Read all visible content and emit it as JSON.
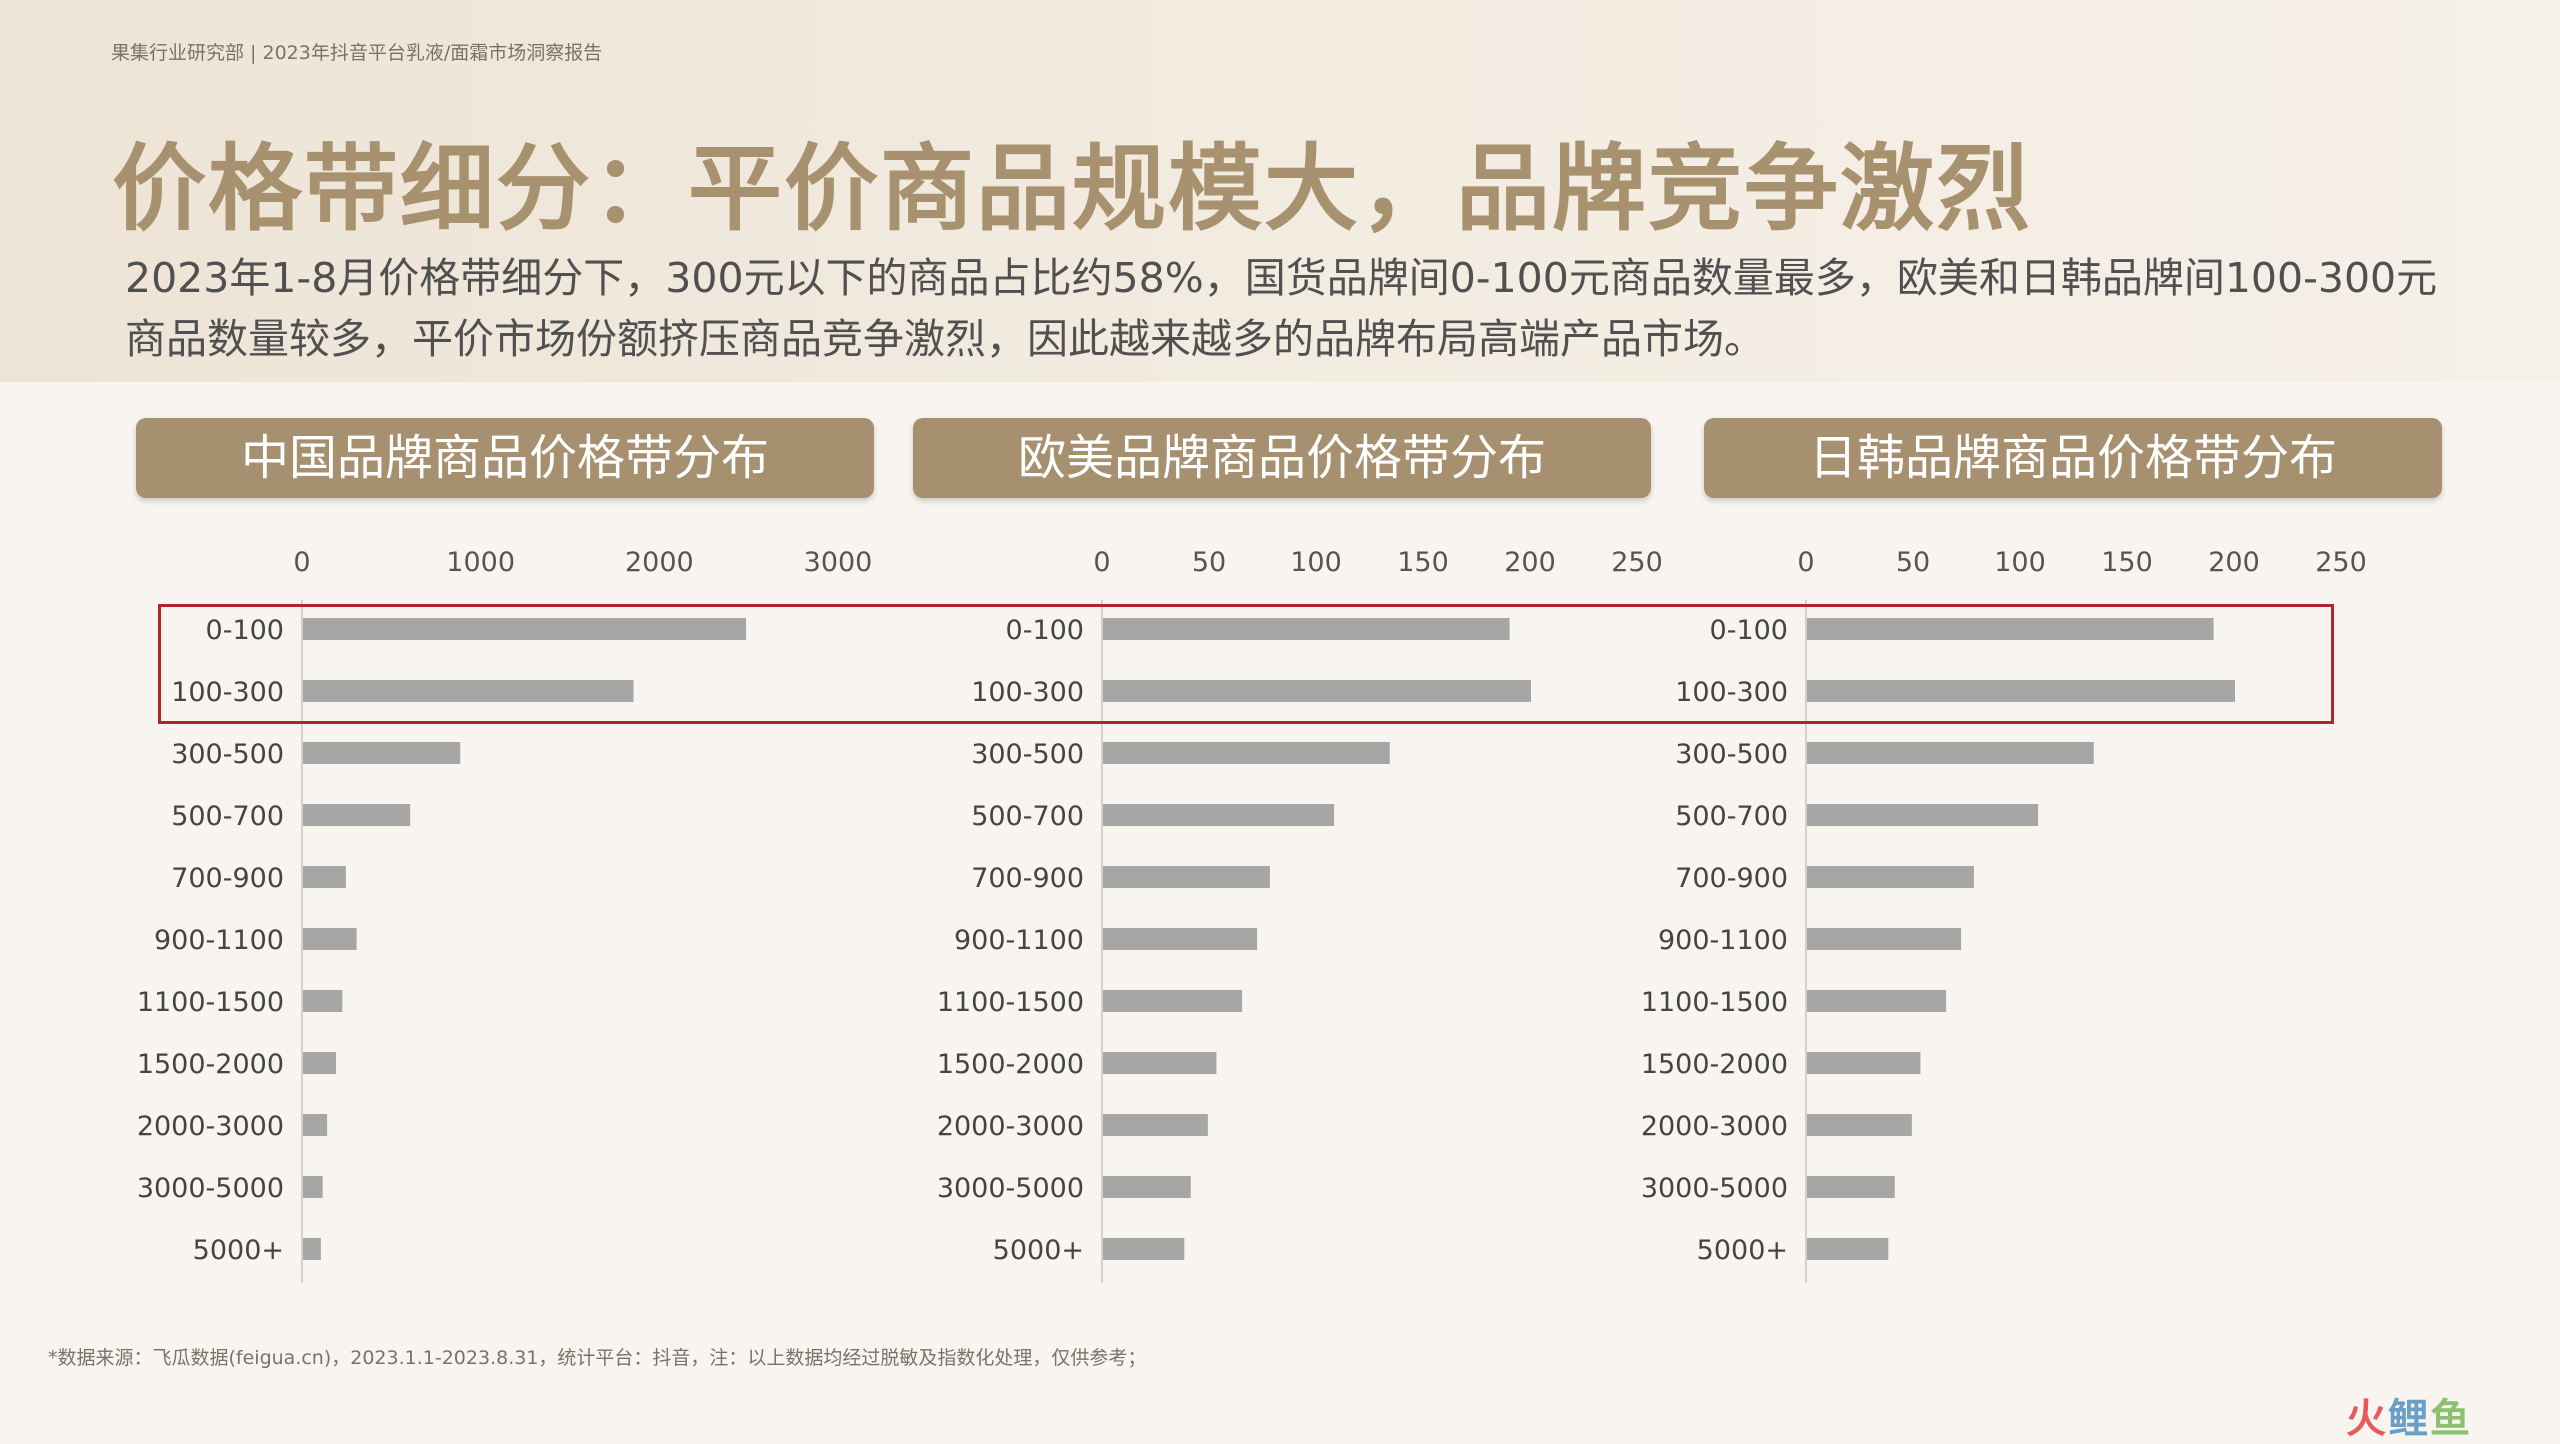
{
  "header": {
    "breadcrumb": "果集行业研究部 | 2023年抖音平台乳液/面霜市场洞察报告"
  },
  "title": "价格带细分：平价商品规模大，品牌竞争激烈",
  "subtitle": "2023年1-8月价格带细分下，300元以下的商品占比约58%，国货品牌间0-100元商品数量最多，欧美和日韩品牌间100-300元商品数量较多，平价市场份额挤压商品竞争激烈，因此越来越多的品牌布局高端产品市场。",
  "panels": {
    "cn": {
      "title": "中国品牌商品价格带分布"
    },
    "eu": {
      "title": "欧美品牌商品价格带分布"
    },
    "jk": {
      "title": "日韩品牌商品价格带分布"
    }
  },
  "colors": {
    "bar": "#a6a6a6",
    "accent": "#a6906f",
    "highlight": "#b0262c",
    "title": "#a8916e"
  },
  "chart_data": [
    {
      "type": "bar",
      "orientation": "horizontal",
      "title": "中国品牌商品价格带分布",
      "categories": [
        "0-100",
        "100-300",
        "300-500",
        "500-700",
        "700-900",
        "900-1100",
        "1100-1500",
        "1500-2000",
        "2000-3000",
        "3000-5000",
        "5000+"
      ],
      "values": [
        2480,
        1850,
        880,
        600,
        240,
        300,
        220,
        185,
        135,
        110,
        100
      ],
      "xlim": [
        0,
        3000
      ],
      "ticks": [
        "0",
        "1000",
        "2000",
        "3000"
      ],
      "tick_values": [
        0,
        1000,
        2000,
        3000
      ]
    },
    {
      "type": "bar",
      "orientation": "horizontal",
      "title": "欧美品牌商品价格带分布",
      "categories": [
        "0-100",
        "100-300",
        "300-500",
        "500-700",
        "700-900",
        "900-1100",
        "1100-1500",
        "1500-2000",
        "2000-3000",
        "3000-5000",
        "5000+"
      ],
      "values": [
        190,
        200,
        134,
        108,
        78,
        72,
        65,
        53,
        49,
        41,
        38
      ],
      "xlim": [
        0,
        250
      ],
      "ticks": [
        "0",
        "50",
        "100",
        "150",
        "200",
        "250"
      ],
      "tick_values": [
        0,
        50,
        100,
        150,
        200,
        250
      ]
    },
    {
      "type": "bar",
      "orientation": "horizontal",
      "title": "日韩品牌商品价格带分布",
      "categories": [
        "0-100",
        "100-300",
        "300-500",
        "500-700",
        "700-900",
        "900-1100",
        "1100-1500",
        "1500-2000",
        "2000-3000",
        "3000-5000",
        "5000+"
      ],
      "values": [
        190,
        200,
        134,
        108,
        78,
        72,
        65,
        53,
        49,
        41,
        38
      ],
      "xlim": [
        0,
        250
      ],
      "ticks": [
        "0",
        "50",
        "100",
        "150",
        "200",
        "250"
      ],
      "tick_values": [
        0,
        50,
        100,
        150,
        200,
        250
      ]
    }
  ],
  "source": "*数据来源：飞瓜数据(feigua.cn)，2023.1.1-2023.8.31，统计平台：抖音，注：以上数据均经过脱敏及指数化处理，仅供参考；",
  "logo": {
    "part1": "火",
    "part2": "鲤",
    "part3": "鱼"
  }
}
